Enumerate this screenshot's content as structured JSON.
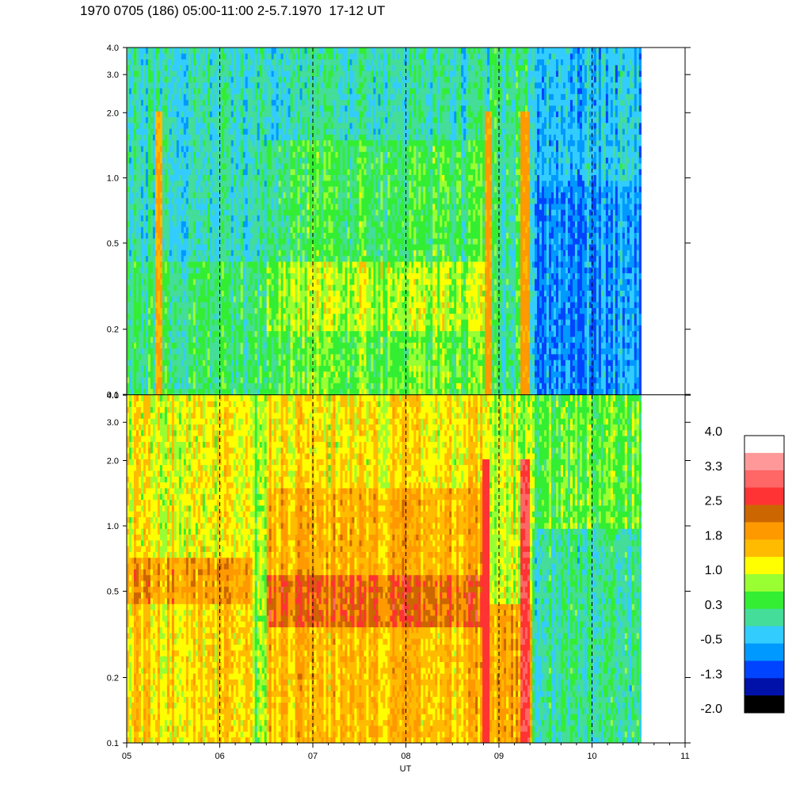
{
  "title": "1970 0705 (186) 05:00-11:00 2-5.7.1970  17-12 UT",
  "chart_data": [
    {
      "type": "heatmap",
      "panel": "top",
      "x_unit": "UT hours",
      "xlim": [
        5,
        11
      ],
      "data_end_x": 10.53,
      "y_scale": "log",
      "ylim": [
        0.1,
        4.0
      ],
      "y_ticks": [
        0.1,
        0.2,
        0.5,
        1.0,
        2.0,
        3.0,
        4.0
      ],
      "y_tick_labels": [
        "0.1",
        "0.2",
        "0.5",
        "1.0",
        "2.0",
        "3.0",
        "4.0"
      ],
      "dashed_vertical_lines_x": [
        6,
        7,
        8,
        9,
        10
      ],
      "approximate_band_levels": [
        {
          "x_from": 5.0,
          "x_to": 6.5,
          "y_from": 0.1,
          "y_to": 0.4,
          "level": 0.3
        },
        {
          "x_from": 5.0,
          "x_to": 6.5,
          "y_from": 0.4,
          "y_to": 4.0,
          "level": 0.0
        },
        {
          "x_from": 6.5,
          "x_to": 8.9,
          "y_from": 0.1,
          "y_to": 0.2,
          "level": 0.6
        },
        {
          "x_from": 6.5,
          "x_to": 8.9,
          "y_from": 0.2,
          "y_to": 0.4,
          "level": 0.9
        },
        {
          "x_from": 6.5,
          "x_to": 8.9,
          "y_from": 0.4,
          "y_to": 1.5,
          "level": 0.4
        },
        {
          "x_from": 6.5,
          "x_to": 8.9,
          "y_from": 1.5,
          "y_to": 4.0,
          "level": 0.0
        },
        {
          "x_from": 8.9,
          "x_to": 9.35,
          "y_from": 0.1,
          "y_to": 4.0,
          "level": 0.2
        },
        {
          "x_from": 9.35,
          "x_to": 10.53,
          "y_from": 0.1,
          "y_to": 1.0,
          "level": -0.6
        },
        {
          "x_from": 9.35,
          "x_to": 10.53,
          "y_from": 1.0,
          "y_to": 4.0,
          "level": -0.3
        }
      ],
      "bright_streaks": [
        {
          "x": 5.35,
          "level": 1.8
        },
        {
          "x": 8.88,
          "level": 1.9
        },
        {
          "x": 9.28,
          "level": 1.9
        }
      ]
    },
    {
      "type": "heatmap",
      "panel": "bottom",
      "x_unit": "UT hours",
      "xlim": [
        5,
        11
      ],
      "data_end_x": 10.53,
      "y_scale": "log",
      "ylim": [
        0.1,
        4.0
      ],
      "y_ticks": [
        0.1,
        0.2,
        0.5,
        1.0,
        2.0,
        3.0,
        4.0
      ],
      "y_tick_labels": [
        "0.1",
        "0.2",
        "0.5",
        "1.0",
        "2.0",
        "3.0",
        "4.0"
      ],
      "x_ticks": [
        5,
        6,
        7,
        8,
        9,
        10,
        11
      ],
      "x_tick_labels": [
        "05",
        "06",
        "07",
        "08",
        "09",
        "10",
        "11"
      ],
      "xlabel": "UT",
      "dashed_vertical_lines_x": [
        6,
        7,
        8,
        9,
        10
      ],
      "approximate_band_levels": [
        {
          "x_from": 5.0,
          "x_to": 6.35,
          "y_from": 0.1,
          "y_to": 0.45,
          "level": 1.4
        },
        {
          "x_from": 5.0,
          "x_to": 6.35,
          "y_from": 0.45,
          "y_to": 0.7,
          "level": 1.9
        },
        {
          "x_from": 5.0,
          "x_to": 6.35,
          "y_from": 0.7,
          "y_to": 4.0,
          "level": 1.2
        },
        {
          "x_from": 6.35,
          "x_to": 6.5,
          "y_from": 0.1,
          "y_to": 4.0,
          "level": 0.8
        },
        {
          "x_from": 6.5,
          "x_to": 8.85,
          "y_from": 0.1,
          "y_to": 0.35,
          "level": 1.6
        },
        {
          "x_from": 6.5,
          "x_to": 8.85,
          "y_from": 0.35,
          "y_to": 0.6,
          "level": 2.3
        },
        {
          "x_from": 6.5,
          "x_to": 8.85,
          "y_from": 0.6,
          "y_to": 1.5,
          "level": 1.7
        },
        {
          "x_from": 6.5,
          "x_to": 8.85,
          "y_from": 1.5,
          "y_to": 4.0,
          "level": 1.3
        },
        {
          "x_from": 8.85,
          "x_to": 9.35,
          "y_from": 0.1,
          "y_to": 0.45,
          "level": 1.8
        },
        {
          "x_from": 8.85,
          "x_to": 9.35,
          "y_from": 0.45,
          "y_to": 4.0,
          "level": 1.0
        },
        {
          "x_from": 9.35,
          "x_to": 10.53,
          "y_from": 0.1,
          "y_to": 1.0,
          "level": 0.1
        },
        {
          "x_from": 9.35,
          "x_to": 10.53,
          "y_from": 1.0,
          "y_to": 4.0,
          "level": 0.6
        }
      ],
      "bright_streaks": [
        {
          "x": 8.87,
          "level": 2.7
        },
        {
          "x": 9.28,
          "level": 2.9
        }
      ]
    }
  ],
  "colorbar": {
    "tick_labels": [
      "4.0",
      "3.3",
      "2.5",
      "1.8",
      "1.0",
      "0.3",
      "-0.5",
      "-1.3",
      "-2.0"
    ],
    "levels_top_to_bottom": [
      4.0,
      3.6,
      3.3,
      2.9,
      2.5,
      2.2,
      1.8,
      1.4,
      1.0,
      0.7,
      0.3,
      -0.1,
      -0.5,
      -0.8,
      -1.3,
      -1.6,
      -2.0
    ],
    "colors_top_to_bottom": [
      "#ffffff",
      "#ff9999",
      "#ff6666",
      "#ff3333",
      "#cc6600",
      "#ff9900",
      "#ffbb00",
      "#ffff00",
      "#99ff33",
      "#33ee33",
      "#44dd99",
      "#33ccff",
      "#0099ff",
      "#0044ff",
      "#0011aa",
      "#000000"
    ]
  }
}
